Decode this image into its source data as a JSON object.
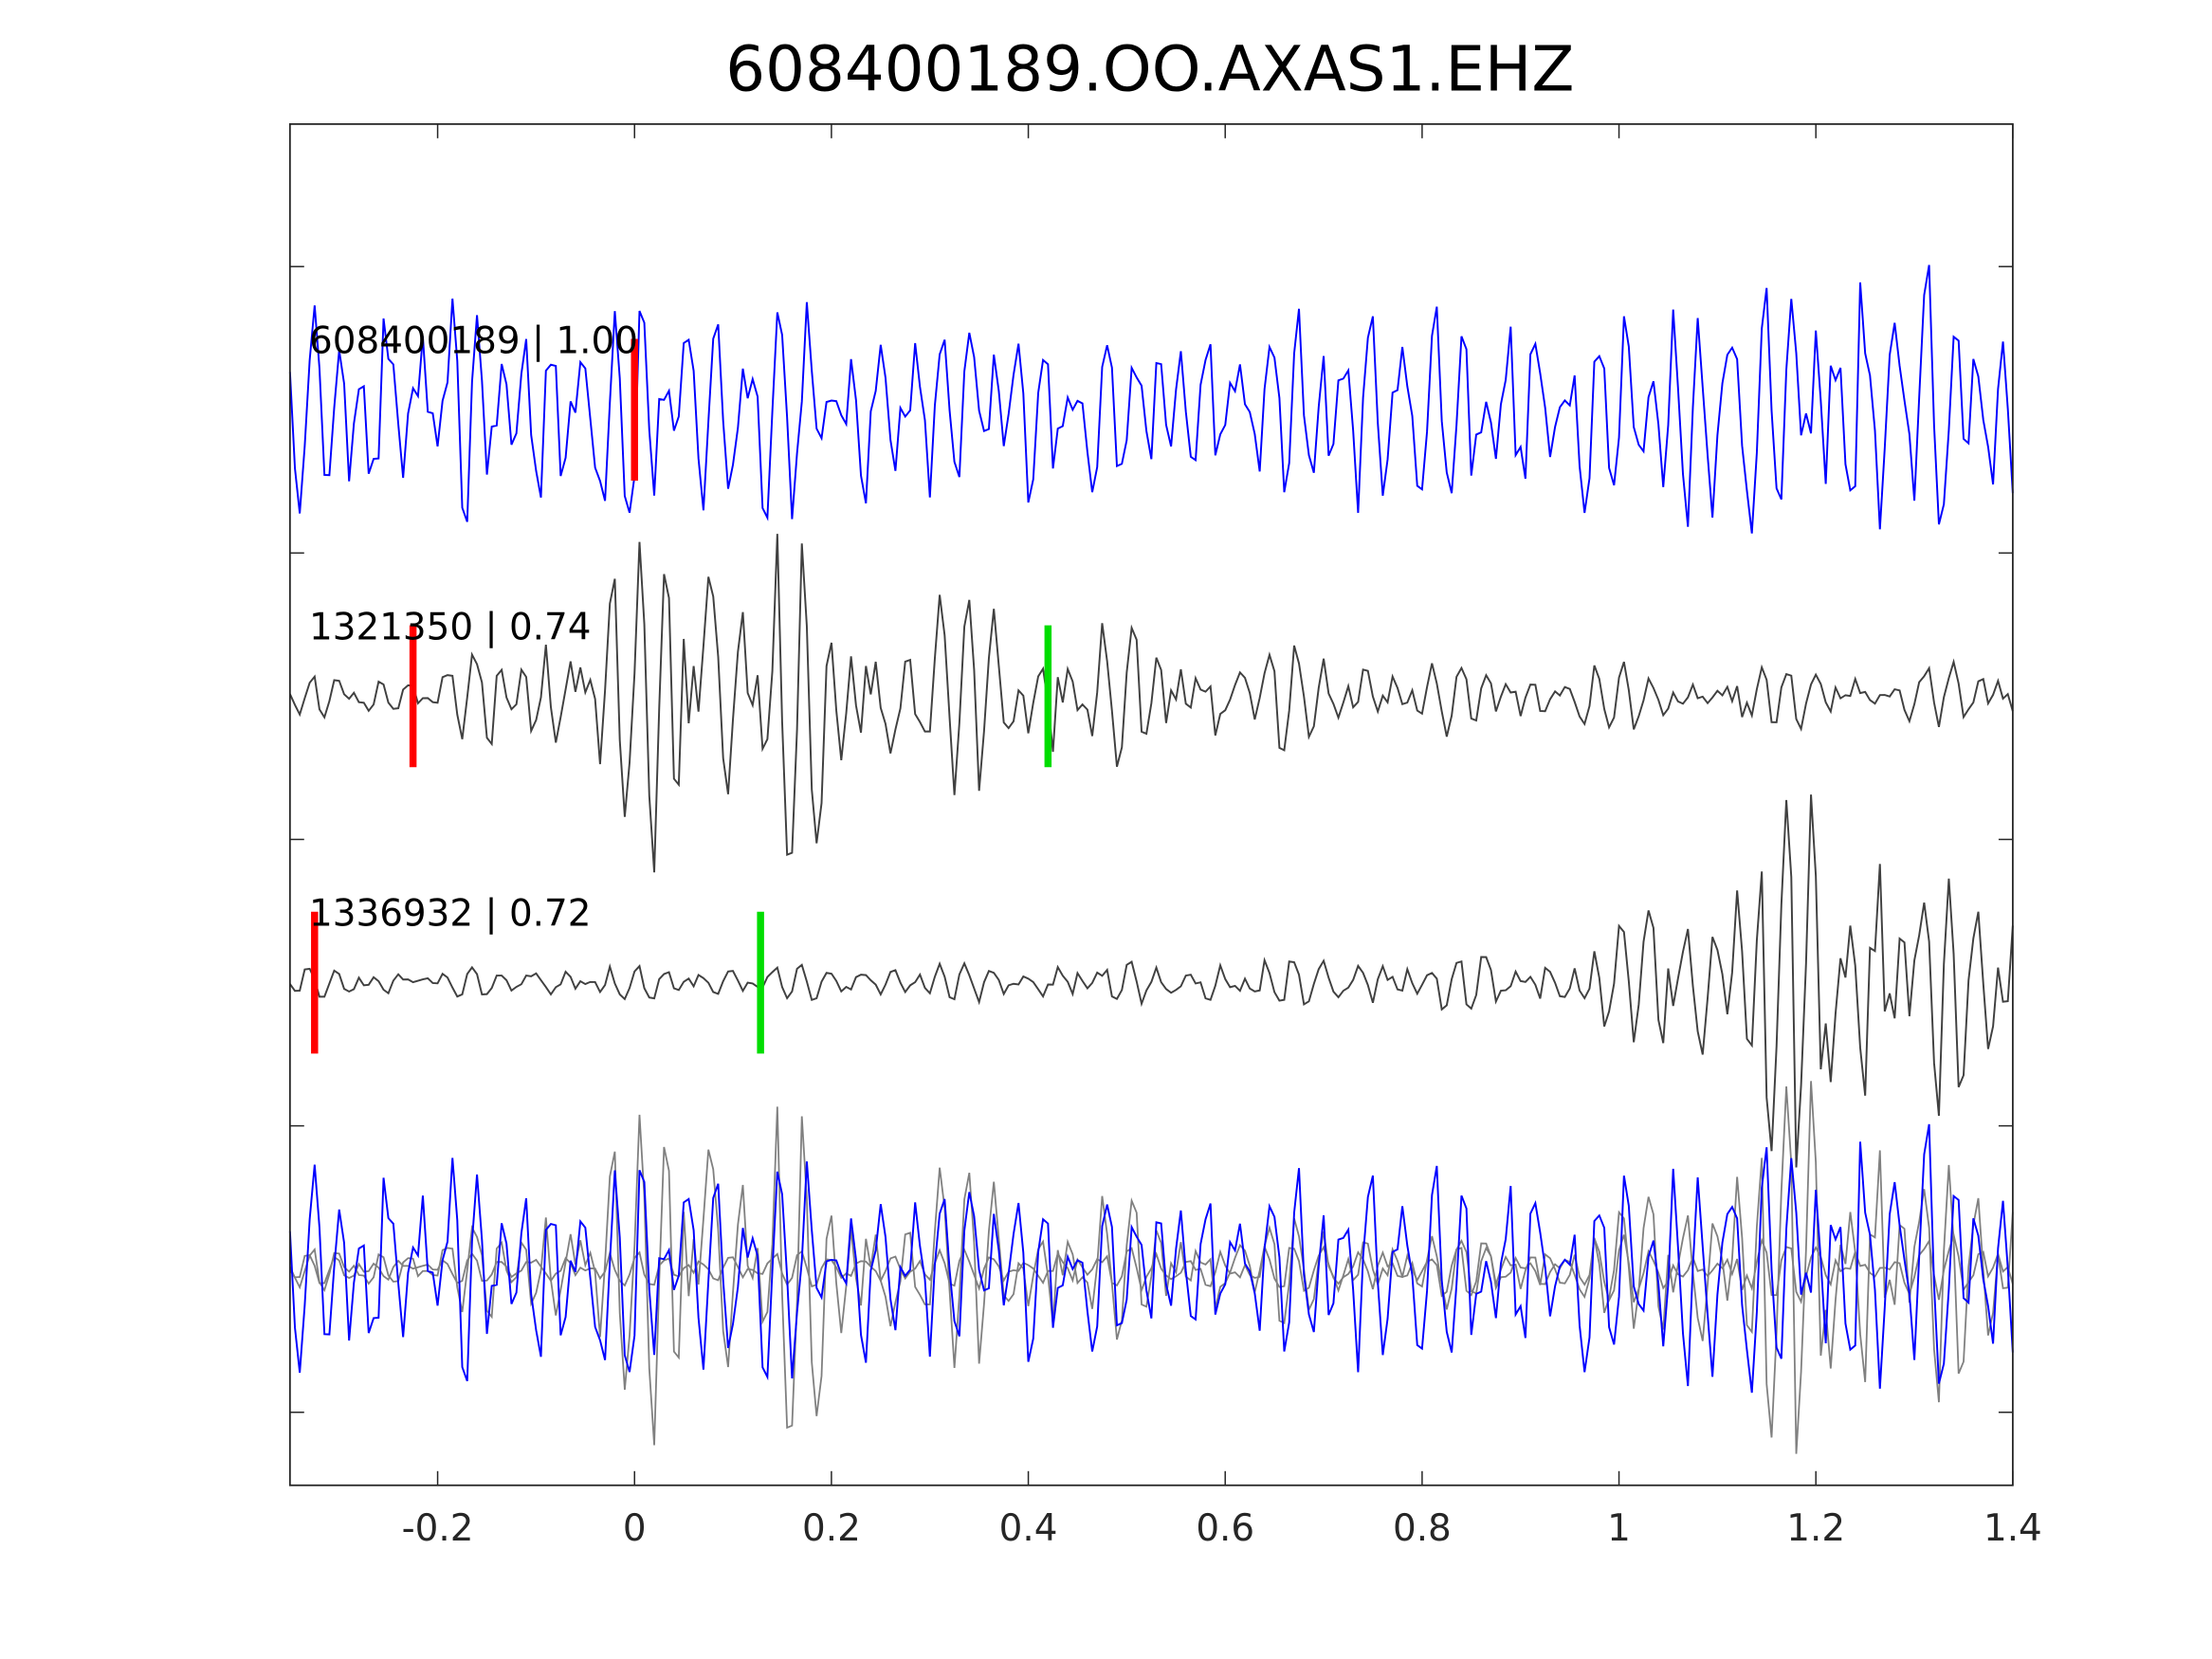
{
  "chart_data": {
    "type": "line",
    "title": "608400189.OO.AXAS1.EHZ",
    "xlabel": "",
    "ylabel": "",
    "xlim": [
      -0.35,
      1.4
    ],
    "xticks": [
      "-0.2",
      "0",
      "0.2",
      "0.4",
      "0.6",
      "0.8",
      "1",
      "1.2",
      "1.4"
    ],
    "xtick_values": [
      -0.2,
      0,
      0.2,
      0.4,
      0.6,
      0.8,
      1,
      1.2,
      1.4
    ],
    "yticks_labeled": false,
    "grid": false,
    "colors": {
      "master": "#0000ff",
      "trace": "#404040",
      "overlay": "#808080",
      "p_pick": "#ff0000",
      "s_pick": "#00dd00"
    },
    "traces": [
      {
        "label": "608400189 | 1.00",
        "id": "608400189",
        "cc": 1.0,
        "color": "#0000ff",
        "p_pick": 0.0,
        "s_pick": null,
        "envelope": [
          [
            -0.35,
            0.3
          ],
          [
            0.0,
            0.35
          ],
          [
            0.5,
            0.25
          ],
          [
            0.7,
            0.3
          ],
          [
            1.0,
            0.3
          ],
          [
            1.2,
            0.45
          ],
          [
            1.4,
            0.4
          ]
        ]
      },
      {
        "label": "1321350 | 0.74",
        "id": "1321350",
        "cc": 0.74,
        "color": "#404040",
        "p_pick": -0.225,
        "s_pick": 0.42,
        "envelope": [
          [
            -0.35,
            0.05
          ],
          [
            -0.2,
            0.1
          ],
          [
            -0.05,
            0.25
          ],
          [
            0.03,
            0.55
          ],
          [
            0.12,
            0.5
          ],
          [
            0.3,
            0.3
          ],
          [
            0.5,
            0.2
          ],
          [
            0.8,
            0.12
          ],
          [
            1.0,
            0.1
          ],
          [
            1.4,
            0.1
          ]
        ]
      },
      {
        "label": "1336932 | 0.72",
        "id": "1336932",
        "cc": 0.72,
        "color": "#404040",
        "p_pick": -0.325,
        "s_pick": 0.128,
        "envelope": [
          [
            -0.35,
            0.04
          ],
          [
            0.5,
            0.06
          ],
          [
            0.7,
            0.08
          ],
          [
            0.95,
            0.08
          ],
          [
            1.05,
            0.25
          ],
          [
            1.12,
            0.5
          ],
          [
            1.2,
            0.55
          ],
          [
            1.3,
            0.4
          ],
          [
            1.4,
            0.35
          ]
        ]
      }
    ]
  }
}
